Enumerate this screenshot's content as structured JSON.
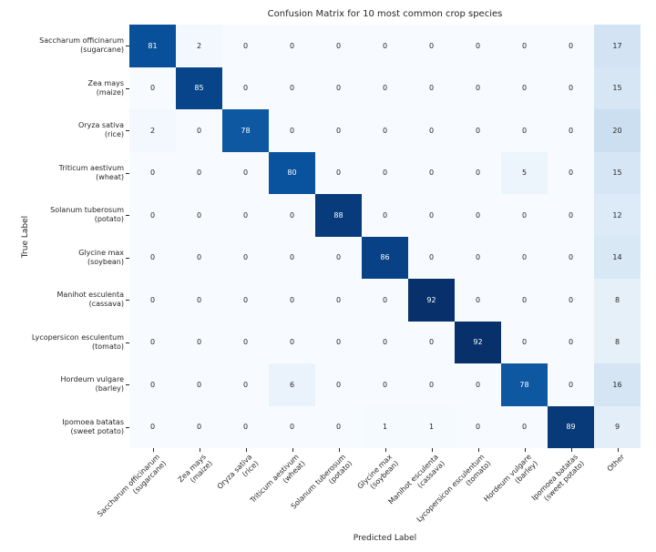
{
  "figure": {
    "background": "#ffffff",
    "text_color": "#262626"
  },
  "chart_data": {
    "type": "heatmap",
    "title": "Confusion Matrix for 10 most common crop species",
    "xlabel": "Predicted Label",
    "ylabel": "True Label",
    "legend": "none",
    "grid": false,
    "vmin": 0,
    "vmax": 92,
    "colormap": {
      "name": "Blues",
      "stops": [
        "#f7fbff",
        "#deebf7",
        "#c6dbef",
        "#9ecae1",
        "#6baed6",
        "#4292c6",
        "#2171b5",
        "#08519c",
        "#08306b"
      ]
    },
    "annotation_color_on_light": "#262626",
    "annotation_color_on_dark": "#ffffff",
    "categories": [
      [
        "Saccharum officinarum",
        "(sugarcane)"
      ],
      [
        "Zea mays",
        "(maize)"
      ],
      [
        "Oryza sativa",
        "(rice)"
      ],
      [
        "Triticum aestivum",
        "(wheat)"
      ],
      [
        "Solanum tuberosum",
        "(potato)"
      ],
      [
        "Glycine max",
        "(soybean)"
      ],
      [
        "Manihot esculenta",
        "(cassava)"
      ],
      [
        "Lycopersicon esculentum",
        "(tomato)"
      ],
      [
        "Hordeum vulgare",
        "(barley)"
      ],
      [
        "Ipomoea batatas",
        "(sweet potato)"
      ]
    ],
    "x_extra_category": [
      "Other"
    ],
    "matrix": [
      [
        81,
        2,
        0,
        0,
        0,
        0,
        0,
        0,
        0,
        0,
        17
      ],
      [
        0,
        85,
        0,
        0,
        0,
        0,
        0,
        0,
        0,
        0,
        15
      ],
      [
        2,
        0,
        78,
        0,
        0,
        0,
        0,
        0,
        0,
        0,
        20
      ],
      [
        0,
        0,
        0,
        80,
        0,
        0,
        0,
        0,
        5,
        0,
        15
      ],
      [
        0,
        0,
        0,
        0,
        88,
        0,
        0,
        0,
        0,
        0,
        12
      ],
      [
        0,
        0,
        0,
        0,
        0,
        86,
        0,
        0,
        0,
        0,
        14
      ],
      [
        0,
        0,
        0,
        0,
        0,
        0,
        92,
        0,
        0,
        0,
        8
      ],
      [
        0,
        0,
        0,
        0,
        0,
        0,
        0,
        92,
        0,
        0,
        8
      ],
      [
        0,
        0,
        0,
        6,
        0,
        0,
        0,
        0,
        78,
        0,
        16
      ],
      [
        0,
        0,
        0,
        0,
        0,
        1,
        1,
        0,
        0,
        89,
        9
      ]
    ]
  }
}
